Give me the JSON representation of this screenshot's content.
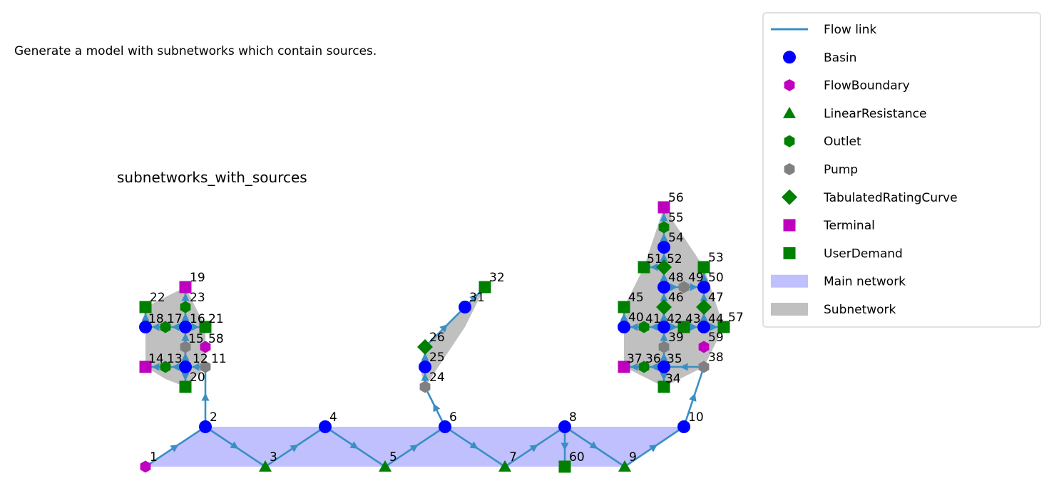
{
  "caption": "Generate a model with subnetworks which contain sources.",
  "plot_title": "subnetworks_with_sources",
  "colors": {
    "flow": "#3a8fc4",
    "basin": "#0000ff",
    "magenta": "#bf00bf",
    "green": "#008000",
    "gray": "#808080",
    "main_network": "#c0c0ff",
    "subnetwork": "#c0c0c0"
  },
  "legend": [
    {
      "label": "Flow link",
      "symbol": "line",
      "color": "#3a8fc4"
    },
    {
      "label": "Basin",
      "symbol": "circle",
      "color": "#0000ff"
    },
    {
      "label": "FlowBoundary",
      "symbol": "hexagon",
      "color": "#bf00bf"
    },
    {
      "label": "LinearResistance",
      "symbol": "triangle",
      "color": "#008000"
    },
    {
      "label": "Outlet",
      "symbol": "hexagon",
      "color": "#008000"
    },
    {
      "label": "Pump",
      "symbol": "hexagon",
      "color": "#808080"
    },
    {
      "label": "TabulatedRatingCurve",
      "symbol": "diamond",
      "color": "#008000"
    },
    {
      "label": "Terminal",
      "symbol": "square",
      "color": "#bf00bf"
    },
    {
      "label": "UserDemand",
      "symbol": "square",
      "color": "#008000"
    },
    {
      "label": "Main network",
      "symbol": "patch",
      "color": "#c0c0ff"
    },
    {
      "label": "Subnetwork",
      "symbol": "patch",
      "color": "#c0c0c0"
    }
  ],
  "nodes": [
    {
      "id": "1",
      "type": "FlowBoundary"
    },
    {
      "id": "2",
      "type": "Basin"
    },
    {
      "id": "3",
      "type": "LinearResistance"
    },
    {
      "id": "4",
      "type": "Basin"
    },
    {
      "id": "5",
      "type": "LinearResistance"
    },
    {
      "id": "6",
      "type": "Basin"
    },
    {
      "id": "7",
      "type": "LinearResistance"
    },
    {
      "id": "8",
      "type": "Basin"
    },
    {
      "id": "9",
      "type": "LinearResistance"
    },
    {
      "id": "10",
      "type": "Basin"
    },
    {
      "id": "11",
      "type": "Pump"
    },
    {
      "id": "12",
      "type": "Basin"
    },
    {
      "id": "13",
      "type": "Outlet"
    },
    {
      "id": "14",
      "type": "Terminal"
    },
    {
      "id": "15",
      "type": "Pump"
    },
    {
      "id": "16",
      "type": "Basin"
    },
    {
      "id": "17",
      "type": "Outlet"
    },
    {
      "id": "18",
      "type": "Basin"
    },
    {
      "id": "19",
      "type": "Terminal"
    },
    {
      "id": "20",
      "type": "UserDemand"
    },
    {
      "id": "21",
      "type": "UserDemand"
    },
    {
      "id": "22",
      "type": "UserDemand"
    },
    {
      "id": "23",
      "type": "Outlet"
    },
    {
      "id": "24",
      "type": "Pump"
    },
    {
      "id": "25",
      "type": "Basin"
    },
    {
      "id": "26",
      "type": "TabulatedRatingCurve"
    },
    {
      "id": "31",
      "type": "Basin"
    },
    {
      "id": "32",
      "type": "UserDemand"
    },
    {
      "id": "34",
      "type": "UserDemand"
    },
    {
      "id": "35",
      "type": "Basin"
    },
    {
      "id": "36",
      "type": "Outlet"
    },
    {
      "id": "37",
      "type": "Terminal"
    },
    {
      "id": "38",
      "type": "Pump"
    },
    {
      "id": "39",
      "type": "Pump"
    },
    {
      "id": "40",
      "type": "Basin"
    },
    {
      "id": "41",
      "type": "Outlet"
    },
    {
      "id": "42",
      "type": "Basin"
    },
    {
      "id": "43",
      "type": "UserDemand"
    },
    {
      "id": "44",
      "type": "Basin"
    },
    {
      "id": "45",
      "type": "UserDemand"
    },
    {
      "id": "46",
      "type": "TabulatedRatingCurve"
    },
    {
      "id": "47",
      "type": "TabulatedRatingCurve"
    },
    {
      "id": "48",
      "type": "Basin"
    },
    {
      "id": "49",
      "type": "Pump"
    },
    {
      "id": "50",
      "type": "Basin"
    },
    {
      "id": "51",
      "type": "UserDemand"
    },
    {
      "id": "52",
      "type": "TabulatedRatingCurve"
    },
    {
      "id": "53",
      "type": "UserDemand"
    },
    {
      "id": "54",
      "type": "Basin"
    },
    {
      "id": "55",
      "type": "Outlet"
    },
    {
      "id": "56",
      "type": "Terminal"
    },
    {
      "id": "57",
      "type": "UserDemand"
    },
    {
      "id": "58",
      "type": "FlowBoundary"
    },
    {
      "id": "59",
      "type": "FlowBoundary"
    },
    {
      "id": "60",
      "type": "UserDemand"
    }
  ],
  "links": [
    [
      "1",
      "2"
    ],
    [
      "2",
      "3"
    ],
    [
      "3",
      "4"
    ],
    [
      "4",
      "5"
    ],
    [
      "5",
      "6"
    ],
    [
      "6",
      "7"
    ],
    [
      "7",
      "8"
    ],
    [
      "8",
      "9"
    ],
    [
      "9",
      "10"
    ],
    [
      "8",
      "60"
    ],
    [
      "2",
      "11"
    ],
    [
      "11",
      "12"
    ],
    [
      "12",
      "13"
    ],
    [
      "13",
      "14"
    ],
    [
      "12",
      "15"
    ],
    [
      "15",
      "16"
    ],
    [
      "16",
      "17"
    ],
    [
      "17",
      "18"
    ],
    [
      "16",
      "23"
    ],
    [
      "23",
      "19"
    ],
    [
      "12",
      "20"
    ],
    [
      "16",
      "21"
    ],
    [
      "18",
      "22"
    ],
    [
      "6",
      "24"
    ],
    [
      "24",
      "25"
    ],
    [
      "25",
      "26"
    ],
    [
      "26",
      "31"
    ],
    [
      "31",
      "32"
    ],
    [
      "10",
      "38"
    ],
    [
      "38",
      "35"
    ],
    [
      "35",
      "36"
    ],
    [
      "36",
      "37"
    ],
    [
      "35",
      "34"
    ],
    [
      "35",
      "39"
    ],
    [
      "39",
      "42"
    ],
    [
      "42",
      "41"
    ],
    [
      "41",
      "40"
    ],
    [
      "40",
      "45"
    ],
    [
      "42",
      "43"
    ],
    [
      "43",
      "44"
    ],
    [
      "44",
      "57"
    ],
    [
      "44",
      "47"
    ],
    [
      "47",
      "50"
    ],
    [
      "42",
      "46"
    ],
    [
      "46",
      "48"
    ],
    [
      "48",
      "49"
    ],
    [
      "49",
      "50"
    ],
    [
      "48",
      "52"
    ],
    [
      "52",
      "54"
    ],
    [
      "54",
      "55"
    ],
    [
      "55",
      "56"
    ],
    [
      "52",
      "51"
    ],
    [
      "50",
      "53"
    ]
  ]
}
